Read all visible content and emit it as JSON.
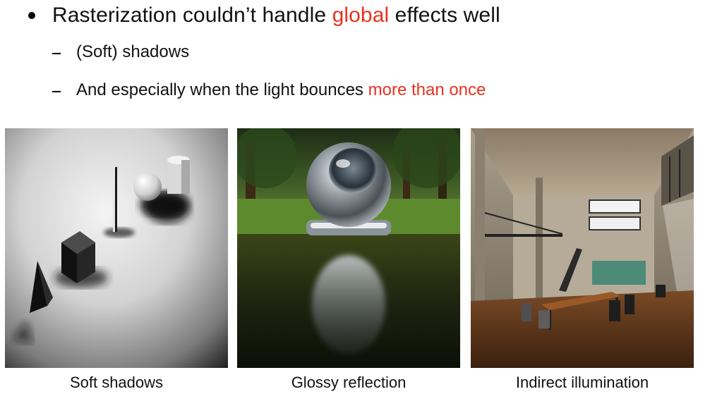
{
  "bullet": {
    "before": "Rasterization couldn’t handle ",
    "highlight": "global",
    "after": " effects well"
  },
  "subpoints": [
    {
      "text": "(Soft) shadows"
    },
    {
      "before": "And especially when the light bounces ",
      "highlight": "more than once"
    }
  ],
  "figures": [
    {
      "caption": "Soft shadows"
    },
    {
      "caption": "Glossy reflection"
    },
    {
      "caption": "Indirect illumination"
    }
  ],
  "colors": {
    "accent": "#e8321f",
    "text": "#111111"
  }
}
